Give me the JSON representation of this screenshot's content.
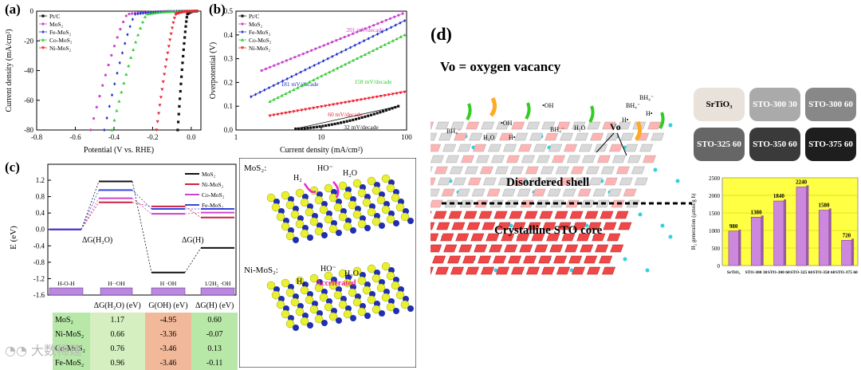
{
  "panel_labels": {
    "a": "(a)",
    "b": "(b)",
    "c": "(c)",
    "d": "(d)"
  },
  "chart_data": [
    {
      "id": "a",
      "type": "line",
      "xlabel": "Potential (V vs. RHE)",
      "ylabel": "Current density (mA/cm²)",
      "xlim": [
        -0.8,
        0.05
      ],
      "ylim": [
        -80,
        0
      ],
      "xticks": [
        "-0.8",
        "-0.6",
        "-0.4",
        "-0.2",
        "0.0"
      ],
      "yticks": [
        "0",
        "-20",
        "-40",
        "-60",
        "-80"
      ],
      "legend_position": "top-left",
      "series": [
        {
          "name": "Pt/C",
          "color": "#111111",
          "onset": -0.02,
          "end": -0.07
        },
        {
          "name": "MoS₂",
          "color": "#cc44cc",
          "onset": -0.33,
          "end": -0.52
        },
        {
          "name": "Fe-MoS₂",
          "color": "#2233cc",
          "onset": -0.29,
          "end": -0.45
        },
        {
          "name": "Co-MoS₂",
          "color": "#33cc33",
          "onset": -0.23,
          "end": -0.41
        },
        {
          "name": "Ni-MoS₂",
          "color": "#ee2233",
          "onset": -0.08,
          "end": -0.18
        }
      ]
    },
    {
      "id": "b",
      "type": "line",
      "log_x": true,
      "xlabel": "Current density (mA/cm²)",
      "ylabel": "Overpotential (V)",
      "xlim": [
        1,
        100
      ],
      "ylim": [
        0,
        0.5
      ],
      "xticks": [
        "1",
        "10",
        "100"
      ],
      "yticks": [
        "0.0",
        "0.1",
        "0.2",
        "0.3",
        "0.4",
        "0.5"
      ],
      "legend_position": "top-left",
      "series": [
        {
          "name": "Pt/C",
          "color": "#111111",
          "x_start": 5,
          "x_end": 80,
          "y_start": 0.005,
          "y_end": 0.1,
          "slope_label": "32 mV/decade"
        },
        {
          "name": "MoS₂",
          "color": "#cc44cc",
          "x_start": 2,
          "x_end": 90,
          "y_start": 0.25,
          "y_end": 0.49,
          "slope_label": "201 mV/decade"
        },
        {
          "name": "Fe-MoS₂",
          "color": "#2233cc",
          "x_start": 1.5,
          "x_end": 95,
          "y_start": 0.14,
          "y_end": 0.46,
          "slope_label": "181 mV/decade"
        },
        {
          "name": "Co-MoS₂",
          "color": "#33cc33",
          "x_start": 2.5,
          "x_end": 95,
          "y_start": 0.12,
          "y_end": 0.4,
          "slope_label": "158 mV/decade"
        },
        {
          "name": "Ni-MoS₂",
          "color": "#ee2233",
          "x_start": 2.5,
          "x_end": 95,
          "y_start": 0.06,
          "y_end": 0.16,
          "slope_label": "60 mV/decade"
        }
      ]
    },
    {
      "id": "c",
      "type": "line",
      "ylabel": "E (eV)",
      "ylim": [
        -1.6,
        1.2
      ],
      "yticks": [
        "1.2",
        "0.8",
        "0.4",
        "0.0",
        "-0.4",
        "-0.8",
        "-1.2",
        "-1.6"
      ],
      "stages": [
        "ΔG(H₂O)",
        "",
        "ΔG(H)"
      ],
      "legend_position": "top-right",
      "series": [
        {
          "name": "MoS₂",
          "color": "#111111",
          "values": [
            0,
            1.17,
            -1.05,
            -0.45
          ]
        },
        {
          "name": "Ni-MoS₂",
          "color": "#cc2244",
          "values": [
            0,
            0.66,
            0.56,
            0.29
          ]
        },
        {
          "name": "Co-MoS₂",
          "color": "#cc44cc",
          "values": [
            0,
            0.76,
            0.38,
            0.41
          ]
        },
        {
          "name": "Fe-MoS₂",
          "color": "#3344dd",
          "values": [
            0,
            0.96,
            0.5,
            0.5
          ]
        }
      ],
      "boxes": [
        "H-O-H",
        "H··OH",
        "H  ·OH",
        "1/2H₂  ·OH"
      ]
    },
    {
      "id": "d",
      "type": "bar",
      "ylabel": "H₂ generation (μmol/g h)",
      "ylim": [
        0,
        2500
      ],
      "yticks": [
        "0",
        "500",
        "1000",
        "1500",
        "2000",
        "2500"
      ],
      "categories": [
        "SrTiO₃",
        "STO-300 30",
        "STO-300 60",
        "STO-325 60",
        "STO-350 60",
        "STO-375 60"
      ],
      "values": [
        980,
        1380,
        1840,
        2240,
        1580,
        720
      ],
      "bar_color": "#cc88dd",
      "background": "#ffff44"
    }
  ],
  "energy_table": {
    "headers": [
      "",
      "ΔG(H₂O) (eV)",
      "G(OH) (eV)",
      "ΔG(H) (eV)"
    ],
    "rows": [
      [
        "MoS₂",
        "1.17",
        "-4.95",
        "0.60"
      ],
      [
        "Ni-MoS₂",
        "0.66",
        "-3.36",
        "-0.07"
      ],
      [
        "Co-MoS₂",
        "0.76",
        "-3.46",
        "0.13"
      ],
      [
        "Fe-MoS₂",
        "0.96",
        "-3.46",
        "-0.11"
      ]
    ]
  },
  "mos2_labels": {
    "mos2": "MoS₂:",
    "ni_mos2": "Ni-MoS₂:",
    "h2": "H₂",
    "ho": "HO⁻",
    "h2o": "H₂O",
    "accelerated": "Accelerated"
  },
  "panel_d": {
    "title": "Vo = oxygen vacancy",
    "vo": "Vo",
    "shell": "Disordered shell",
    "core": "Crystalline STO core",
    "species": [
      "BH₄⁻",
      "H₂O",
      "H•",
      "BH₄⁻",
      "•OH",
      "H₂O",
      "H•",
      "BH₄⁻",
      "•OH",
      "H•",
      "BH₄⁻"
    ],
    "photos": [
      "SrTiO₃",
      "STO-300 30",
      "STO-300 60",
      "STO-325 60",
      "STO-350 60",
      "STO-375 60"
    ]
  },
  "watermark": "大数稀建"
}
